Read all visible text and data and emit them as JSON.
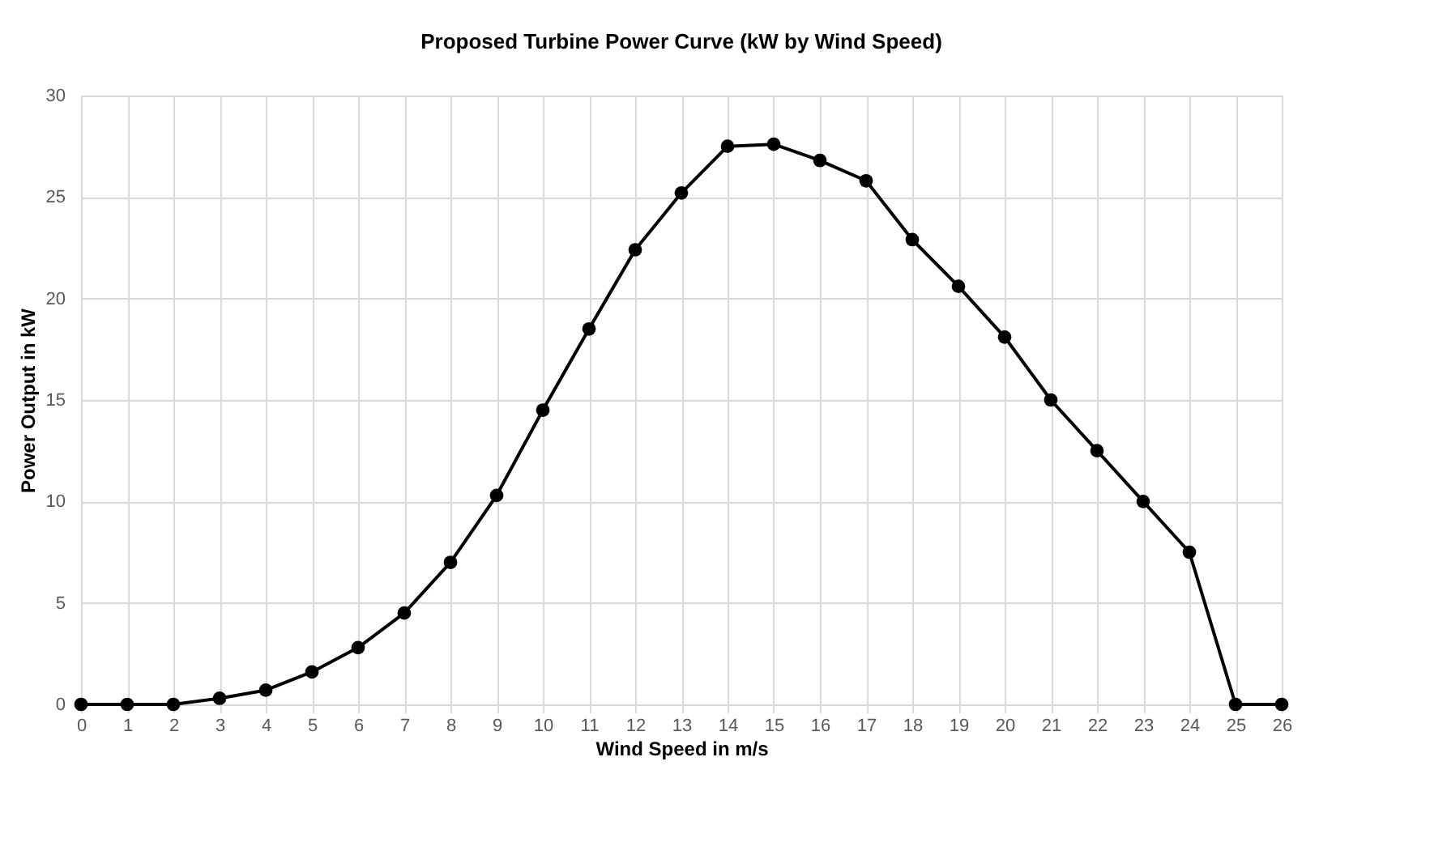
{
  "chart_data": {
    "type": "line",
    "title": "Proposed Turbine Power Curve (kW by Wind Speed)",
    "xlabel": "Wind Speed in m/s",
    "ylabel": "Power Output in kW",
    "x": [
      0,
      1,
      2,
      3,
      4,
      5,
      6,
      7,
      8,
      9,
      10,
      11,
      12,
      13,
      14,
      15,
      16,
      17,
      18,
      19,
      20,
      21,
      22,
      23,
      24,
      25,
      26
    ],
    "series": [
      {
        "color": "#000000",
        "values": [
          0,
          0,
          0,
          0.3,
          0.7,
          1.6,
          2.8,
          4.5,
          7.0,
          10.3,
          14.5,
          18.5,
          22.4,
          25.2,
          27.5,
          27.6,
          26.8,
          25.8,
          22.9,
          20.6,
          18.1,
          15.0,
          12.5,
          10.0,
          7.5,
          0,
          0
        ]
      }
    ],
    "xlim": [
      0,
      26
    ],
    "xticks": [
      0,
      1,
      2,
      3,
      4,
      5,
      6,
      7,
      8,
      9,
      10,
      11,
      12,
      13,
      14,
      15,
      16,
      17,
      18,
      19,
      20,
      21,
      22,
      23,
      24,
      25,
      26
    ],
    "ylim": [
      0,
      30
    ],
    "yticks": [
      0,
      5,
      10,
      15,
      20,
      25,
      30
    ],
    "grid": true,
    "marker": "circle",
    "line_style": "solid"
  }
}
